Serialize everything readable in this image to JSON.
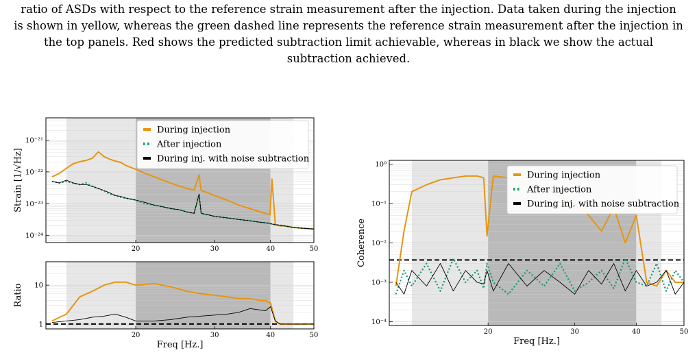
{
  "caption": {
    "lines": [
      "ratio of ASDs with respect to the reference strain measurement after the injection. Data taken during the injection",
      "is shown in yellow, whereas the green dashed line represents the reference strain measurement after the injection in",
      "the top panels. Red shows the predicted subtraction limit achievable, whereas in black we show the actual",
      "subtraction achieved."
    ]
  },
  "colors": {
    "during": "#e69512",
    "after": "#119a6a",
    "subtracted": "#000000",
    "band_light": "#e7e7e7",
    "band_dark": "#b9b9b9"
  },
  "chart_data": [
    {
      "type": "line",
      "panel": "strain",
      "title": "",
      "xlabel": "",
      "ylabel": "Strain [1/√Hz]",
      "xscale": "log",
      "yscale": "log",
      "xlim": [
        12.6,
        50
      ],
      "ylim": [
        6e-25,
        5e-21
      ],
      "xticks": [
        "20",
        "30",
        "40",
        "50"
      ],
      "yticks": [
        "10⁻²¹",
        "10⁻²²",
        "10⁻²³",
        "10⁻²⁴"
      ],
      "shaded_bands": [
        {
          "range": [
            14,
            20
          ],
          "shade": "light"
        },
        {
          "range": [
            20,
            40
          ],
          "shade": "dark"
        },
        {
          "range": [
            40,
            45
          ],
          "shade": "light"
        }
      ],
      "legend": "top-right",
      "x": [
        13,
        13.5,
        14,
        14.5,
        15,
        15.5,
        16,
        16.5,
        17,
        17.5,
        18,
        18.5,
        19,
        20,
        21,
        22,
        23,
        24,
        25,
        26,
        27,
        27.7,
        28,
        29,
        30,
        32,
        34,
        36,
        38,
        39,
        39.9,
        40.3,
        41,
        42,
        43,
        44,
        45,
        47,
        50
      ],
      "series": [
        {
          "name": "During injection",
          "style": "solid",
          "values": [
            7e-23,
            9e-23,
            1.3e-22,
            1.8e-22,
            2.1e-22,
            2.3e-22,
            2.7e-22,
            4.3e-22,
            3e-22,
            2.5e-22,
            2.2e-22,
            2e-22,
            1.6e-22,
            1.2e-22,
            9e-23,
            7e-23,
            5.5e-23,
            4.4e-23,
            3.6e-23,
            3e-23,
            2.7e-23,
            8e-23,
            2.6e-23,
            2.2e-23,
            1.8e-23,
            1.3e-23,
            9e-24,
            7e-24,
            5.5e-24,
            5e-24,
            4.5e-24,
            6e-23,
            2.2e-24,
            2e-24,
            2e-24,
            1.9e-24,
            1.8e-24,
            1.7e-24,
            1.6e-24
          ]
        },
        {
          "name": "After injection",
          "style": "dotted",
          "values": [
            5e-23,
            4.5e-23,
            5e-23,
            4.5e-23,
            4e-23,
            4.5e-23,
            3.5e-23,
            3e-23,
            2.5e-23,
            2e-23,
            1.8e-23,
            1.6e-23,
            1.5e-23,
            1.3e-23,
            1e-23,
            9e-24,
            8e-24,
            7e-24,
            6.5e-24,
            5.5e-24,
            5e-24,
            2e-23,
            5e-24,
            4.5e-24,
            4e-24,
            3.6e-24,
            3.2e-24,
            2.9e-24,
            2.6e-24,
            2.5e-24,
            2.4e-24,
            2.3e-24,
            2.2e-24,
            2.1e-24,
            2e-24,
            1.9e-24,
            1.8e-24,
            1.7e-24,
            1.6e-24
          ]
        },
        {
          "name": "During inj. with noise subtraction",
          "style": "solid-thin",
          "values": [
            5e-23,
            4.5e-23,
            5.5e-23,
            4.5e-23,
            4e-23,
            4e-23,
            3.5e-23,
            3e-23,
            2.6e-23,
            2.2e-23,
            1.8e-23,
            1.7e-23,
            1.5e-23,
            1.3e-23,
            1.1e-23,
            9e-24,
            8e-24,
            7e-24,
            6.5e-24,
            5.5e-24,
            5e-24,
            2e-23,
            5e-24,
            4.5e-24,
            4e-24,
            3.6e-24,
            3.2e-24,
            2.9e-24,
            2.6e-24,
            2.5e-24,
            2.4e-24,
            2.3e-24,
            2.2e-24,
            2.1e-24,
            2e-24,
            1.9e-24,
            1.8e-24,
            1.7e-24,
            1.6e-24
          ]
        }
      ]
    },
    {
      "type": "line",
      "panel": "ratio",
      "title": "",
      "xlabel": "Freq [Hz.]",
      "ylabel": "Ratio",
      "xscale": "log",
      "yscale": "log",
      "xlim": [
        12.6,
        50
      ],
      "ylim": [
        0.75,
        40
      ],
      "xticks": [
        "20",
        "30",
        "40",
        "50"
      ],
      "yticks": [
        "10",
        "1"
      ],
      "reference_line": 1,
      "shaded_bands": [
        {
          "range": [
            14,
            20
          ],
          "shade": "light"
        },
        {
          "range": [
            20,
            40
          ],
          "shade": "dark"
        },
        {
          "range": [
            40,
            45
          ],
          "shade": "light"
        }
      ],
      "x": [
        13,
        14,
        15,
        16,
        17,
        18,
        19,
        20,
        22,
        24,
        26,
        28,
        30,
        32,
        34,
        36,
        38,
        39,
        40,
        41,
        42,
        44,
        46,
        48,
        50
      ],
      "series": [
        {
          "name": "During injection",
          "style": "solid",
          "values": [
            1.2,
            1.8,
            5,
            7,
            10,
            12,
            12,
            10,
            11,
            9,
            7,
            6,
            5.5,
            5,
            4.5,
            4.5,
            4,
            4,
            3.5,
            1.2,
            1,
            1,
            1,
            1,
            1
          ]
        },
        {
          "name": "During inj. with noise subtraction",
          "style": "solid-thin",
          "values": [
            1.1,
            1.2,
            1.3,
            1.5,
            1.6,
            1.8,
            1.5,
            1.2,
            1.2,
            1.3,
            1.5,
            1.6,
            1.7,
            1.8,
            2,
            2.5,
            2.3,
            2.2,
            2.8,
            1.2,
            1,
            1,
            1,
            1,
            1
          ]
        }
      ]
    },
    {
      "type": "line",
      "panel": "coherence",
      "title": "",
      "xlabel": "Freq [Hz.]",
      "ylabel": "Coherence",
      "xscale": "log",
      "yscale": "log",
      "xlim": [
        12.6,
        50
      ],
      "ylim": [
        8e-05,
        1.25
      ],
      "xticks": [
        "20",
        "30",
        "40",
        "50"
      ],
      "yticks": [
        "10⁰",
        "10⁻¹",
        "10⁻²",
        "10⁻³",
        "10⁻⁴"
      ],
      "reference_line": 0.0037,
      "shaded_bands": [
        {
          "range": [
            14,
            20
          ],
          "shade": "light"
        },
        {
          "range": [
            20,
            40
          ],
          "shade": "dark"
        },
        {
          "range": [
            40,
            45
          ],
          "shade": "light"
        }
      ],
      "legend": "top-right",
      "x": [
        13,
        13.5,
        14,
        15,
        16,
        17,
        18,
        19,
        19.6,
        19.9,
        20.5,
        22,
        24,
        26,
        28,
        30,
        32,
        34,
        36,
        38,
        40,
        42,
        44,
        46,
        48,
        50
      ],
      "series": [
        {
          "name": "During injection",
          "style": "solid",
          "values": [
            0.0008,
            0.02,
            0.2,
            0.3,
            0.4,
            0.45,
            0.5,
            0.5,
            0.45,
            0.015,
            0.5,
            0.45,
            0.3,
            0.25,
            0.15,
            0.1,
            0.05,
            0.02,
            0.08,
            0.01,
            0.05,
            0.001,
            0.0008,
            0.002,
            0.001,
            0.001
          ]
        },
        {
          "name": "After injection",
          "style": "dotted",
          "values": [
            0.0005,
            0.002,
            0.0008,
            0.003,
            0.0006,
            0.004,
            0.001,
            0.002,
            0.0007,
            0.003,
            0.001,
            0.0005,
            0.002,
            0.0008,
            0.003,
            0.0006,
            0.001,
            0.002,
            0.0007,
            0.004,
            0.001,
            0.0008,
            0.003,
            0.0006,
            0.002,
            0.001
          ]
        },
        {
          "name": "During inj. with noise subtraction",
          "style": "solid-thin",
          "values": [
            0.001,
            0.0005,
            0.002,
            0.0008,
            0.003,
            0.0006,
            0.002,
            0.001,
            0.0009,
            0.002,
            0.0006,
            0.003,
            0.0008,
            0.002,
            0.001,
            0.0005,
            0.002,
            0.0009,
            0.003,
            0.0006,
            0.002,
            0.0008,
            0.001,
            0.002,
            0.0005,
            0.001
          ]
        }
      ]
    }
  ]
}
